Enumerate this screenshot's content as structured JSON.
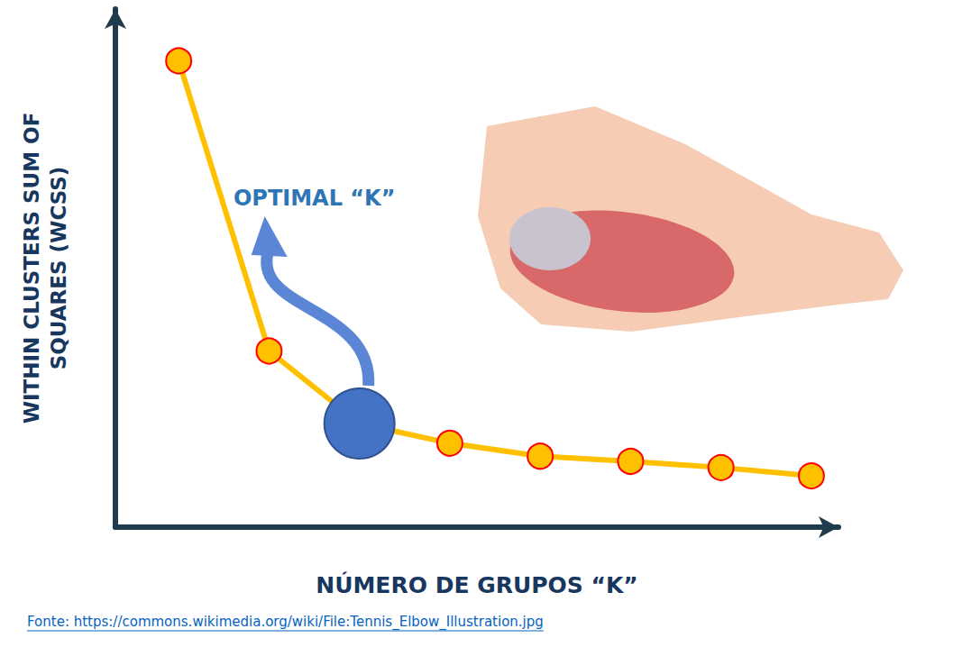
{
  "chart_data": {
    "type": "line",
    "x": [
      1,
      2,
      3,
      4,
      5,
      6,
      7,
      8
    ],
    "values": [
      90,
      34,
      20,
      16.2,
      13.7,
      12.7,
      11.5,
      9.9
    ],
    "color": "#ffc000",
    "marker": "circle",
    "xlabel": "NÚMERO DE GRUPOS “K”",
    "ylabel": "WITHIN CLUSTERS SUM OF\nSQUARES (WCSS)",
    "xlim": [
      0.3,
      8.3
    ],
    "ylim": [
      0,
      100
    ],
    "tick_labels": false,
    "grid": false,
    "annotation": {
      "text": "OPTIMAL “K”",
      "x": 3,
      "y": 20,
      "color": "#4472c4"
    },
    "source": "Fonte: https://commons.wikimedia.org/wiki/File:Tennis_Elbow_Illustration.jpg"
  }
}
